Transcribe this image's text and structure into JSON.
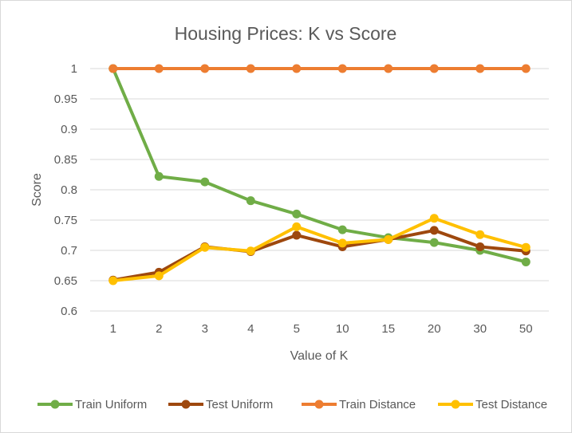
{
  "chart_data": {
    "type": "line",
    "title": "Housing Prices: K vs Score",
    "xlabel": "Value of K",
    "ylabel": "Score",
    "categories": [
      "1",
      "2",
      "3",
      "4",
      "5",
      "10",
      "15",
      "20",
      "30",
      "50"
    ],
    "ylim": [
      0.6,
      1
    ],
    "yticks": [
      "0.6",
      "0.65",
      "0.7",
      "0.75",
      "0.8",
      "0.85",
      "0.9",
      "0.95",
      "1"
    ],
    "grid": true,
    "legend_position": "bottom",
    "series": [
      {
        "name": "Train Uniform",
        "color": "#70ad47",
        "values": [
          1.0,
          0.822,
          0.813,
          0.782,
          0.76,
          0.734,
          0.721,
          0.713,
          0.7,
          0.681
        ]
      },
      {
        "name": "Test Uniform",
        "color": "#9e480e",
        "values": [
          0.651,
          0.664,
          0.706,
          0.698,
          0.725,
          0.706,
          0.718,
          0.733,
          0.706,
          0.699
        ]
      },
      {
        "name": "Train Distance",
        "color": "#ed7d31",
        "values": [
          1,
          1,
          1,
          1,
          1,
          1,
          1,
          1,
          1,
          1
        ]
      },
      {
        "name": "Test Distance",
        "color": "#ffc000",
        "values": [
          0.65,
          0.658,
          0.705,
          0.699,
          0.739,
          0.712,
          0.718,
          0.753,
          0.726,
          0.705
        ]
      }
    ]
  }
}
